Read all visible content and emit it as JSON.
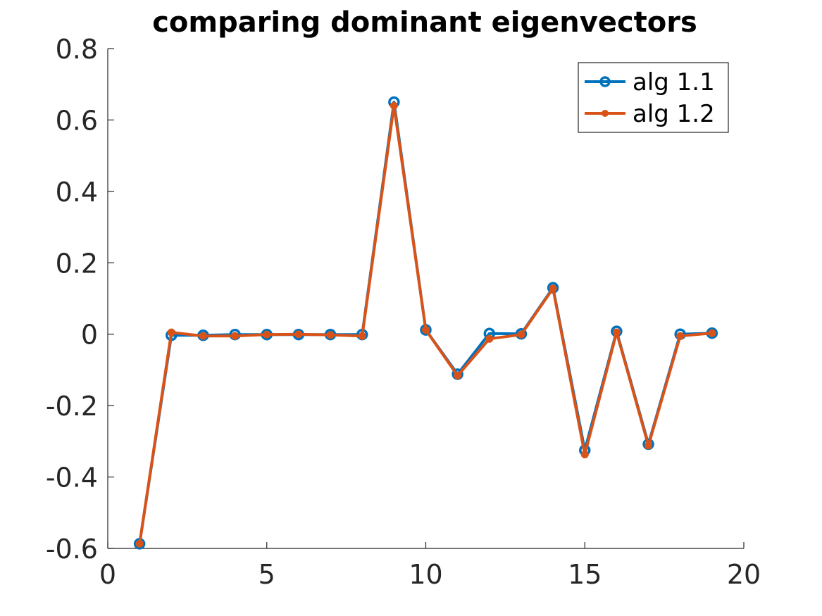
{
  "chart_data": {
    "type": "line",
    "title": "comparing dominant eigenvectors",
    "xlabel": "",
    "ylabel": "",
    "xlim": [
      0,
      20
    ],
    "ylim": [
      -0.6,
      0.8
    ],
    "xticks": [
      0,
      5,
      10,
      15,
      20
    ],
    "xtick_labels": [
      "0",
      "5",
      "10",
      "15",
      "20"
    ],
    "yticks": [
      -0.6,
      -0.4,
      -0.2,
      0,
      0.2,
      0.4,
      0.6,
      0.8
    ],
    "ytick_labels": [
      "-0.6",
      "-0.4",
      "-0.2",
      "0",
      "0.2",
      "0.4",
      "0.6",
      "0.8"
    ],
    "grid": false,
    "legend_position": "top-right",
    "x": [
      1,
      2,
      3,
      4,
      5,
      6,
      7,
      8,
      9,
      10,
      11,
      12,
      13,
      14,
      15,
      16,
      17,
      18,
      19
    ],
    "series": [
      {
        "name": "alg 1.1",
        "color": "#0072BD",
        "marker": "open-circle",
        "values": [
          -0.587,
          -0.003,
          -0.003,
          -0.001,
          -0.001,
          -0.001,
          -0.001,
          -0.001,
          0.65,
          0.012,
          -0.112,
          0.002,
          0.001,
          0.13,
          -0.325,
          0.008,
          -0.308,
          0.0,
          0.003
        ]
      },
      {
        "name": "alg 1.2",
        "color": "#D95319",
        "marker": "filled-dot",
        "values": [
          -0.587,
          0.005,
          -0.005,
          -0.005,
          -0.001,
          0.0,
          -0.002,
          -0.005,
          0.64,
          0.012,
          -0.116,
          -0.013,
          -0.001,
          0.128,
          -0.337,
          0.005,
          -0.312,
          -0.005,
          0.003
        ]
      }
    ]
  }
}
